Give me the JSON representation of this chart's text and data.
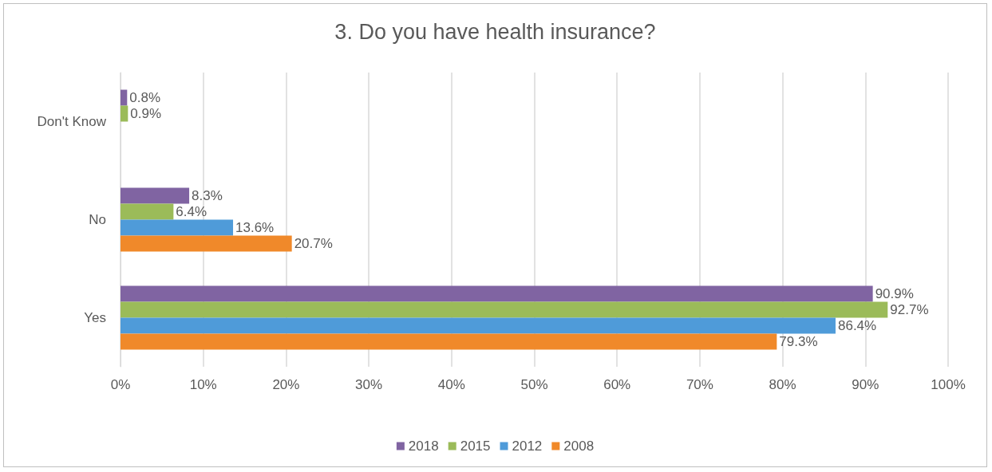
{
  "chart_data": {
    "type": "bar",
    "orientation": "horizontal",
    "title": "3. Do you have health insurance?",
    "categories": [
      "Don't Know",
      "No",
      "Yes"
    ],
    "series": [
      {
        "name": "2018",
        "color": "#8064a2",
        "values": [
          0.8,
          8.3,
          90.9
        ],
        "value_labels": [
          "0.8%",
          "8.3%",
          "90.9%"
        ]
      },
      {
        "name": "2015",
        "color": "#9bbb59",
        "values": [
          0.9,
          6.4,
          92.7
        ],
        "value_labels": [
          "0.9%",
          "6.4%",
          "92.7%"
        ]
      },
      {
        "name": "2012",
        "color": "#4f9bd9",
        "values": [
          null,
          13.6,
          86.4
        ],
        "value_labels": [
          null,
          "13.6%",
          "86.4%"
        ]
      },
      {
        "name": "2008",
        "color": "#f0892a",
        "values": [
          null,
          20.7,
          79.3
        ],
        "value_labels": [
          null,
          "20.7%",
          "79.3%"
        ]
      }
    ],
    "xlim": [
      0,
      100
    ],
    "xticks": [
      {
        "value": 0,
        "label": "0%"
      },
      {
        "value": 10,
        "label": "10%"
      },
      {
        "value": 20,
        "label": "20%"
      },
      {
        "value": 30,
        "label": "30%"
      },
      {
        "value": 40,
        "label": "40%"
      },
      {
        "value": 50,
        "label": "50%"
      },
      {
        "value": 60,
        "label": "60%"
      },
      {
        "value": 70,
        "label": "70%"
      },
      {
        "value": 80,
        "label": "80%"
      },
      {
        "value": 90,
        "label": "90%"
      },
      {
        "value": 100,
        "label": "100%"
      }
    ],
    "grid": "x",
    "legend": "bottom"
  }
}
